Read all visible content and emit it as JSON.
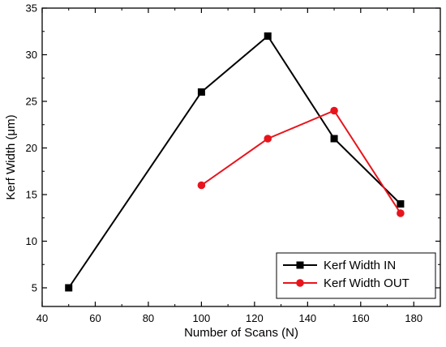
{
  "chart_data": {
    "type": "line",
    "title": "",
    "xlabel": "Number of Scans (N)",
    "ylabel": "Kerf Width (μm)",
    "xlim": [
      40,
      190
    ],
    "ylim": [
      3,
      35
    ],
    "xticks": [
      40,
      60,
      80,
      100,
      120,
      140,
      160,
      180
    ],
    "yticks": [
      5,
      10,
      15,
      20,
      25,
      30,
      35
    ],
    "grid": false,
    "legend_position": "bottom-right",
    "series": [
      {
        "name": "Kerf Width IN",
        "color": "#000000",
        "marker": "square",
        "x": [
          50,
          100,
          125,
          150,
          175
        ],
        "y": [
          5,
          26,
          32,
          21,
          14
        ]
      },
      {
        "name": "Kerf Width OUT",
        "color": "#e8141c",
        "marker": "circle",
        "x": [
          100,
          125,
          150,
          175
        ],
        "y": [
          16,
          21,
          24,
          13
        ]
      }
    ]
  }
}
